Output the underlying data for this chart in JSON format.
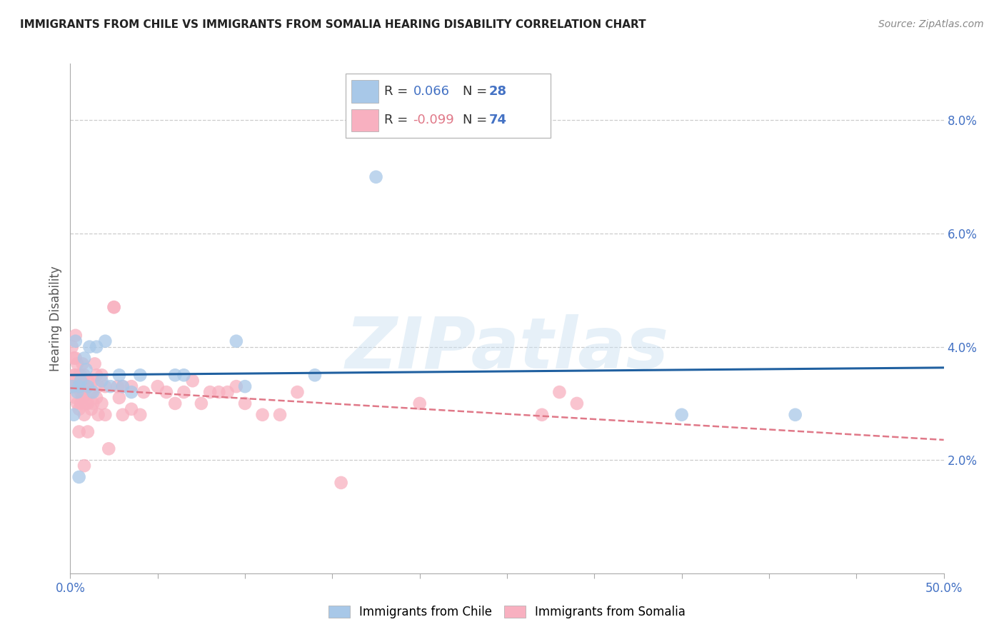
{
  "title": "IMMIGRANTS FROM CHILE VS IMMIGRANTS FROM SOMALIA HEARING DISABILITY CORRELATION CHART",
  "source": "Source: ZipAtlas.com",
  "ylabel": "Hearing Disability",
  "watermark": "ZIPatlas",
  "xlim": [
    0.0,
    0.5
  ],
  "ylim": [
    0.0,
    0.09
  ],
  "xtick_vals": [
    0.0,
    0.05,
    0.1,
    0.15,
    0.2,
    0.25,
    0.3,
    0.35,
    0.4,
    0.45,
    0.5
  ],
  "xtick_labeled": [
    0.0,
    0.5
  ],
  "ytick_right": [
    0.08,
    0.06,
    0.04,
    0.02
  ],
  "chile_color": "#a8c8e8",
  "chile_line_color": "#2060a0",
  "somalia_color": "#f8b0c0",
  "somalia_line_color": "#e07888",
  "chile_R": "0.066",
  "chile_N": "28",
  "somalia_R": "-0.099",
  "somalia_N": "74",
  "legend_text_color": "#333333",
  "legend_R_color": "#4472c4",
  "legend_somalia_R_color": "#e07888",
  "legend_N_color": "#4472c4",
  "axis_label_color": "#4472c4",
  "grid_color": "#cccccc",
  "chile_points": [
    [
      0.001,
      0.033
    ],
    [
      0.002,
      0.028
    ],
    [
      0.003,
      0.041
    ],
    [
      0.004,
      0.032
    ],
    [
      0.005,
      0.033
    ],
    [
      0.006,
      0.034
    ],
    [
      0.008,
      0.038
    ],
    [
      0.009,
      0.036
    ],
    [
      0.01,
      0.033
    ],
    [
      0.011,
      0.04
    ],
    [
      0.013,
      0.032
    ],
    [
      0.015,
      0.04
    ],
    [
      0.018,
      0.034
    ],
    [
      0.02,
      0.041
    ],
    [
      0.023,
      0.033
    ],
    [
      0.028,
      0.035
    ],
    [
      0.03,
      0.033
    ],
    [
      0.035,
      0.032
    ],
    [
      0.04,
      0.035
    ],
    [
      0.06,
      0.035
    ],
    [
      0.065,
      0.035
    ],
    [
      0.095,
      0.041
    ],
    [
      0.1,
      0.033
    ],
    [
      0.14,
      0.035
    ],
    [
      0.175,
      0.07
    ],
    [
      0.35,
      0.028
    ],
    [
      0.415,
      0.028
    ],
    [
      0.005,
      0.017
    ]
  ],
  "somalia_points": [
    [
      0.001,
      0.033
    ],
    [
      0.001,
      0.04
    ],
    [
      0.002,
      0.035
    ],
    [
      0.002,
      0.038
    ],
    [
      0.002,
      0.033
    ],
    [
      0.003,
      0.038
    ],
    [
      0.003,
      0.035
    ],
    [
      0.003,
      0.042
    ],
    [
      0.003,
      0.031
    ],
    [
      0.004,
      0.033
    ],
    [
      0.004,
      0.037
    ],
    [
      0.004,
      0.03
    ],
    [
      0.005,
      0.033
    ],
    [
      0.005,
      0.035
    ],
    [
      0.005,
      0.029
    ],
    [
      0.005,
      0.025
    ],
    [
      0.006,
      0.032
    ],
    [
      0.006,
      0.035
    ],
    [
      0.006,
      0.03
    ],
    [
      0.007,
      0.037
    ],
    [
      0.007,
      0.034
    ],
    [
      0.007,
      0.031
    ],
    [
      0.008,
      0.035
    ],
    [
      0.008,
      0.032
    ],
    [
      0.008,
      0.028
    ],
    [
      0.008,
      0.019
    ],
    [
      0.009,
      0.033
    ],
    [
      0.009,
      0.03
    ],
    [
      0.01,
      0.034
    ],
    [
      0.01,
      0.03
    ],
    [
      0.01,
      0.025
    ],
    [
      0.012,
      0.032
    ],
    [
      0.012,
      0.029
    ],
    [
      0.013,
      0.034
    ],
    [
      0.013,
      0.03
    ],
    [
      0.014,
      0.037
    ],
    [
      0.015,
      0.035
    ],
    [
      0.015,
      0.031
    ],
    [
      0.016,
      0.033
    ],
    [
      0.016,
      0.028
    ],
    [
      0.018,
      0.035
    ],
    [
      0.018,
      0.03
    ],
    [
      0.02,
      0.033
    ],
    [
      0.02,
      0.028
    ],
    [
      0.022,
      0.022
    ],
    [
      0.025,
      0.047
    ],
    [
      0.025,
      0.047
    ],
    [
      0.027,
      0.033
    ],
    [
      0.028,
      0.031
    ],
    [
      0.03,
      0.033
    ],
    [
      0.03,
      0.028
    ],
    [
      0.035,
      0.033
    ],
    [
      0.035,
      0.029
    ],
    [
      0.04,
      0.028
    ],
    [
      0.042,
      0.032
    ],
    [
      0.05,
      0.033
    ],
    [
      0.055,
      0.032
    ],
    [
      0.06,
      0.03
    ],
    [
      0.065,
      0.032
    ],
    [
      0.07,
      0.034
    ],
    [
      0.075,
      0.03
    ],
    [
      0.08,
      0.032
    ],
    [
      0.085,
      0.032
    ],
    [
      0.09,
      0.032
    ],
    [
      0.095,
      0.033
    ],
    [
      0.1,
      0.03
    ],
    [
      0.11,
      0.028
    ],
    [
      0.12,
      0.028
    ],
    [
      0.13,
      0.032
    ],
    [
      0.155,
      0.016
    ],
    [
      0.2,
      0.03
    ],
    [
      0.27,
      0.028
    ],
    [
      0.28,
      0.032
    ],
    [
      0.29,
      0.03
    ]
  ]
}
